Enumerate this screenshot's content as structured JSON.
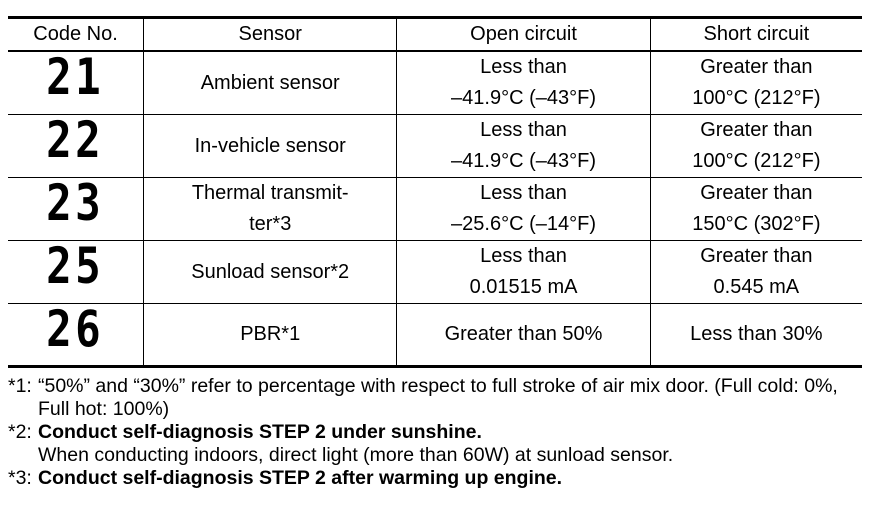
{
  "table": {
    "header": [
      "Code No.",
      "Sensor",
      "Open circuit",
      "Short circuit"
    ],
    "rows": [
      {
        "code": "21",
        "sensor": [
          "Ambient sensor"
        ],
        "open": [
          "Less than",
          "–41.9°C (–43°F)"
        ],
        "short": [
          "Greater than",
          "100°C (212°F)"
        ]
      },
      {
        "code": "22",
        "sensor": [
          "In-vehicle sensor"
        ],
        "open": [
          "Less than",
          "–41.9°C (–43°F)"
        ],
        "short": [
          "Greater than",
          "100°C (212°F)"
        ]
      },
      {
        "code": "23",
        "sensor": [
          "Thermal transmit-",
          "ter*3"
        ],
        "open": [
          "Less than",
          "–25.6°C (–14°F)"
        ],
        "short": [
          "Greater than",
          "150°C (302°F)"
        ]
      },
      {
        "code": "25",
        "sensor": [
          "Sunload sensor*2"
        ],
        "open": [
          "Less than",
          "0.01515 mA"
        ],
        "short": [
          "Greater than",
          "0.545 mA"
        ]
      },
      {
        "code": "26",
        "sensor": [
          "PBR*1"
        ],
        "open": [
          "Greater than 50%"
        ],
        "short": [
          "Less than 30%"
        ]
      }
    ]
  },
  "notes": [
    {
      "mark": "*1:",
      "text": "“50%” and “30%” refer to percentage with respect to full stroke of air mix door. (Full cold: 0%, Full hot: 100%)"
    },
    {
      "mark": "*2:",
      "bold": "Conduct self-diagnosis STEP 2 under sunshine.",
      "text": "When conducting indoors, direct light (more than 60W) at sunload sensor."
    },
    {
      "mark": "*3:",
      "bold": "Conduct self-diagnosis STEP 2 after warming up engine."
    }
  ]
}
